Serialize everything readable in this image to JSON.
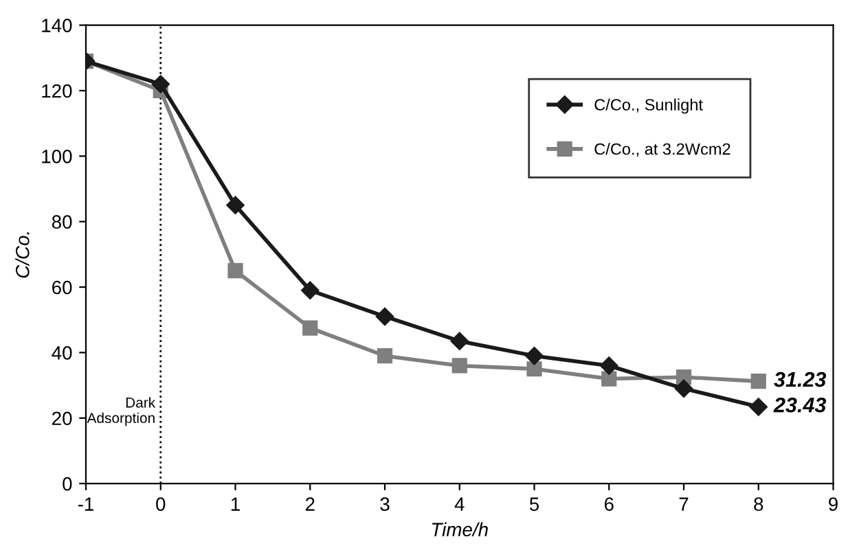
{
  "chart_data": {
    "type": "line",
    "xlabel": "Time/h",
    "ylabel": "C/Co.",
    "x": [
      -1,
      0,
      1,
      2,
      3,
      4,
      5,
      6,
      7,
      8
    ],
    "series": [
      {
        "name": "C/Co., Sunlight",
        "color": "#1a1a1a",
        "marker": "diamond",
        "values": [
          129,
          122,
          85,
          59,
          51,
          43.5,
          39,
          36,
          29,
          23.43
        ],
        "value_labels": [
          null,
          null,
          null,
          null,
          null,
          null,
          null,
          null,
          null,
          "23.43"
        ]
      },
      {
        "name": "C/Co., at 3.2Wcm2",
        "color": "#7f7f7f",
        "marker": "square",
        "values": [
          129,
          120,
          65,
          47.5,
          39,
          36,
          35,
          32,
          32.5,
          31.23
        ],
        "value_labels": [
          null,
          null,
          null,
          null,
          null,
          null,
          null,
          null,
          null,
          "31.23"
        ]
      }
    ],
    "xlim": [
      -1,
      9
    ],
    "xticks": [
      -1,
      0,
      1,
      2,
      3,
      4,
      5,
      6,
      7,
      8,
      9
    ],
    "ylim": [
      0,
      140
    ],
    "yticks": [
      0,
      20,
      40,
      60,
      80,
      100,
      120,
      140
    ],
    "ref_lines": [
      {
        "axis": "x",
        "value": 0,
        "label": "Dark Adsorption",
        "line_style": "dotted",
        "color": "#000000"
      }
    ],
    "grid": false,
    "legend": "top right",
    "line_style": "solid"
  }
}
